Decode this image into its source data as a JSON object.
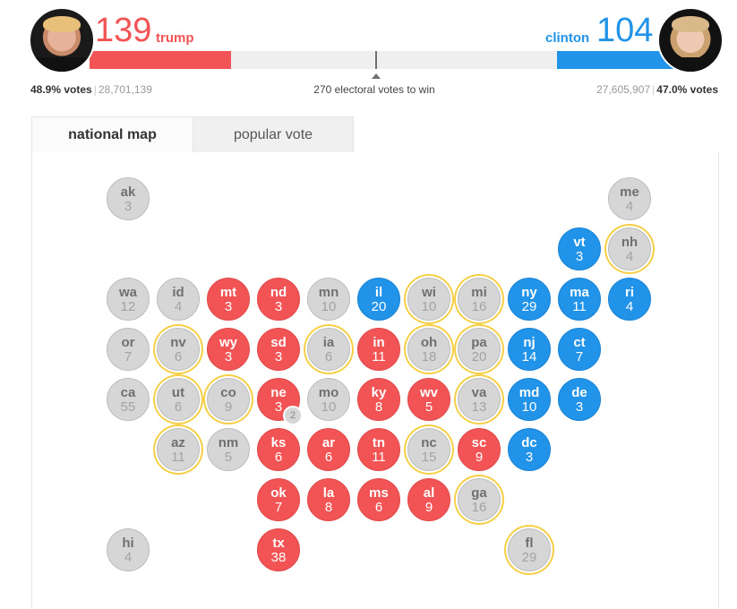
{
  "header": {
    "republican": {
      "name": "trump",
      "electoral_votes": "139",
      "popular_pct": "48.9% votes",
      "popular_count": "28,701,139",
      "color": "#f25455"
    },
    "democrat": {
      "name": "clinton",
      "electoral_votes": "104",
      "popular_pct": "47.0% votes",
      "popular_count": "27,605,907",
      "color": "#2193e8"
    },
    "win_label": "270 electoral votes to win",
    "separator": "|"
  },
  "tabs": [
    {
      "label": "national map",
      "active": true
    },
    {
      "label": "popular vote",
      "active": false
    }
  ],
  "colors": {
    "republican": "#f25455",
    "democrat": "#2193e8",
    "undecided": "#d6d6d6",
    "key_race_ring": "#f6cf46"
  },
  "states": [
    {
      "abbr": "ak",
      "ev": "3",
      "status": "N",
      "key": false,
      "col": 0,
      "row": 0
    },
    {
      "abbr": "me",
      "ev": "4",
      "status": "N",
      "key": false,
      "col": 10,
      "row": 0
    },
    {
      "abbr": "vt",
      "ev": "3",
      "status": "D",
      "key": false,
      "col": 9,
      "row": 1
    },
    {
      "abbr": "nh",
      "ev": "4",
      "status": "N",
      "key": true,
      "col": 10,
      "row": 1
    },
    {
      "abbr": "wa",
      "ev": "12",
      "status": "N",
      "key": false,
      "col": 0,
      "row": 2
    },
    {
      "abbr": "id",
      "ev": "4",
      "status": "N",
      "key": false,
      "col": 1,
      "row": 2
    },
    {
      "abbr": "mt",
      "ev": "3",
      "status": "R",
      "key": false,
      "col": 2,
      "row": 2
    },
    {
      "abbr": "nd",
      "ev": "3",
      "status": "R",
      "key": false,
      "col": 3,
      "row": 2
    },
    {
      "abbr": "mn",
      "ev": "10",
      "status": "N",
      "key": false,
      "col": 4,
      "row": 2
    },
    {
      "abbr": "il",
      "ev": "20",
      "status": "D",
      "key": false,
      "col": 5,
      "row": 2
    },
    {
      "abbr": "wi",
      "ev": "10",
      "status": "N",
      "key": true,
      "col": 6,
      "row": 2
    },
    {
      "abbr": "mi",
      "ev": "16",
      "status": "N",
      "key": true,
      "col": 7,
      "row": 2
    },
    {
      "abbr": "ny",
      "ev": "29",
      "status": "D",
      "key": false,
      "col": 8,
      "row": 2
    },
    {
      "abbr": "ma",
      "ev": "11",
      "status": "D",
      "key": false,
      "col": 9,
      "row": 2
    },
    {
      "abbr": "ri",
      "ev": "4",
      "status": "D",
      "key": false,
      "col": 10,
      "row": 2
    },
    {
      "abbr": "or",
      "ev": "7",
      "status": "N",
      "key": false,
      "col": 0,
      "row": 3
    },
    {
      "abbr": "nv",
      "ev": "6",
      "status": "N",
      "key": true,
      "col": 1,
      "row": 3
    },
    {
      "abbr": "wy",
      "ev": "3",
      "status": "R",
      "key": false,
      "col": 2,
      "row": 3
    },
    {
      "abbr": "sd",
      "ev": "3",
      "status": "R",
      "key": false,
      "col": 3,
      "row": 3
    },
    {
      "abbr": "ia",
      "ev": "6",
      "status": "N",
      "key": true,
      "col": 4,
      "row": 3
    },
    {
      "abbr": "in",
      "ev": "11",
      "status": "R",
      "key": false,
      "col": 5,
      "row": 3
    },
    {
      "abbr": "oh",
      "ev": "18",
      "status": "N",
      "key": true,
      "col": 6,
      "row": 3
    },
    {
      "abbr": "pa",
      "ev": "20",
      "status": "N",
      "key": true,
      "col": 7,
      "row": 3
    },
    {
      "abbr": "nj",
      "ev": "14",
      "status": "D",
      "key": false,
      "col": 8,
      "row": 3
    },
    {
      "abbr": "ct",
      "ev": "7",
      "status": "D",
      "key": false,
      "col": 9,
      "row": 3
    },
    {
      "abbr": "ca",
      "ev": "55",
      "status": "N",
      "key": false,
      "col": 0,
      "row": 4
    },
    {
      "abbr": "ut",
      "ev": "6",
      "status": "N",
      "key": true,
      "col": 1,
      "row": 4
    },
    {
      "abbr": "co",
      "ev": "9",
      "status": "N",
      "key": true,
      "col": 2,
      "row": 4
    },
    {
      "abbr": "ne",
      "ev": "3",
      "status": "R",
      "key": false,
      "col": 3,
      "row": 4,
      "split": "2"
    },
    {
      "abbr": "mo",
      "ev": "10",
      "status": "N",
      "key": false,
      "col": 4,
      "row": 4
    },
    {
      "abbr": "ky",
      "ev": "8",
      "status": "R",
      "key": false,
      "col": 5,
      "row": 4
    },
    {
      "abbr": "wv",
      "ev": "5",
      "status": "R",
      "key": false,
      "col": 6,
      "row": 4
    },
    {
      "abbr": "va",
      "ev": "13",
      "status": "N",
      "key": true,
      "col": 7,
      "row": 4
    },
    {
      "abbr": "md",
      "ev": "10",
      "status": "D",
      "key": false,
      "col": 8,
      "row": 4
    },
    {
      "abbr": "de",
      "ev": "3",
      "status": "D",
      "key": false,
      "col": 9,
      "row": 4
    },
    {
      "abbr": "az",
      "ev": "11",
      "status": "N",
      "key": true,
      "col": 1,
      "row": 5
    },
    {
      "abbr": "nm",
      "ev": "5",
      "status": "N",
      "key": false,
      "col": 2,
      "row": 5
    },
    {
      "abbr": "ks",
      "ev": "6",
      "status": "R",
      "key": false,
      "col": 3,
      "row": 5
    },
    {
      "abbr": "ar",
      "ev": "6",
      "status": "R",
      "key": false,
      "col": 4,
      "row": 5
    },
    {
      "abbr": "tn",
      "ev": "11",
      "status": "R",
      "key": false,
      "col": 5,
      "row": 5
    },
    {
      "abbr": "nc",
      "ev": "15",
      "status": "N",
      "key": true,
      "col": 6,
      "row": 5
    },
    {
      "abbr": "sc",
      "ev": "9",
      "status": "R",
      "key": false,
      "col": 7,
      "row": 5
    },
    {
      "abbr": "dc",
      "ev": "3",
      "status": "D",
      "key": false,
      "col": 8,
      "row": 5
    },
    {
      "abbr": "ok",
      "ev": "7",
      "status": "R",
      "key": false,
      "col": 3,
      "row": 6
    },
    {
      "abbr": "la",
      "ev": "8",
      "status": "R",
      "key": false,
      "col": 4,
      "row": 6
    },
    {
      "abbr": "ms",
      "ev": "6",
      "status": "R",
      "key": false,
      "col": 5,
      "row": 6
    },
    {
      "abbr": "al",
      "ev": "9",
      "status": "R",
      "key": false,
      "col": 6,
      "row": 6
    },
    {
      "abbr": "ga",
      "ev": "16",
      "status": "N",
      "key": true,
      "col": 7,
      "row": 6
    },
    {
      "abbr": "hi",
      "ev": "4",
      "status": "N",
      "key": false,
      "col": 0,
      "row": 7
    },
    {
      "abbr": "tx",
      "ev": "38",
      "status": "R",
      "key": false,
      "col": 3,
      "row": 7
    },
    {
      "abbr": "fl",
      "ev": "29",
      "status": "N",
      "key": true,
      "col": 8,
      "row": 7
    }
  ]
}
